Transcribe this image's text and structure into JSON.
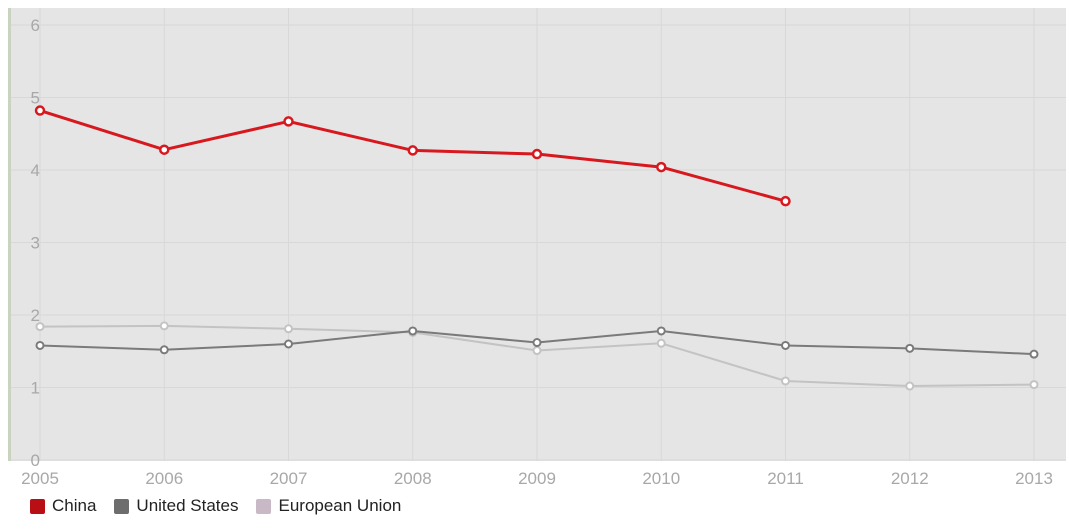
{
  "chart_data": {
    "type": "line",
    "title": "",
    "xlabel": "",
    "ylabel": "",
    "x": [
      "2005",
      "2006",
      "2007",
      "2008",
      "2009",
      "2010",
      "2011",
      "2012",
      "2013"
    ],
    "ylim": [
      0,
      6
    ],
    "yticks": [
      "0",
      "1",
      "2",
      "3",
      "4",
      "5",
      "6"
    ],
    "grid": true,
    "legend_position": "bottom-left",
    "series": [
      {
        "name": "China",
        "color": "#d7191f",
        "values": [
          4.82,
          4.28,
          4.67,
          4.27,
          4.22,
          4.04,
          3.57,
          null,
          null
        ]
      },
      {
        "name": "United States",
        "color": "#7a7a7a",
        "values": [
          1.58,
          1.52,
          1.6,
          1.78,
          1.62,
          1.78,
          1.58,
          1.54,
          1.46
        ]
      },
      {
        "name": "European Union",
        "color": "#c3c3c3",
        "values": [
          1.84,
          1.85,
          1.81,
          1.76,
          1.51,
          1.61,
          1.09,
          1.02,
          1.04
        ]
      }
    ]
  },
  "legend": {
    "items": [
      {
        "label": "China",
        "swatch_color": "#b80f14"
      },
      {
        "label": "United States",
        "swatch_color": "#6d6d6d"
      },
      {
        "label": "European Union",
        "swatch_color": "#c9b8c6"
      }
    ]
  },
  "colors": {
    "plot_background": "#e5e5e5",
    "gridline": "#d8d8d8",
    "tick_label": "#a8a8a8",
    "left_axis": "#c8d4bf"
  }
}
